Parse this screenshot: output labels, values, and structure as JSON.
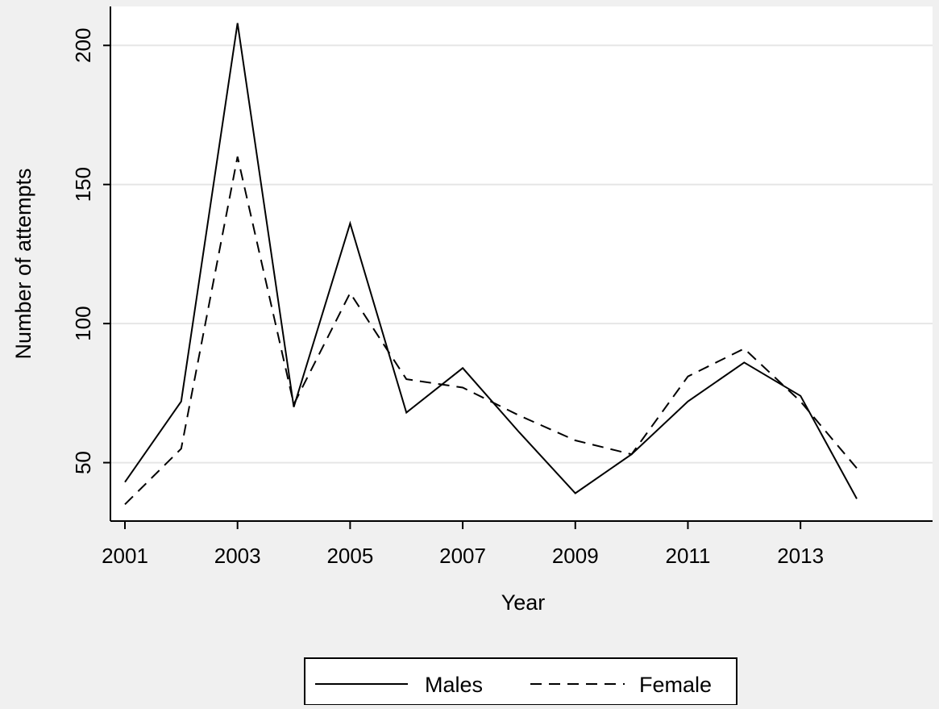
{
  "chart_data": {
    "type": "line",
    "title": "",
    "xlabel": "Year",
    "ylabel": "Number of attempts",
    "xlim": [
      2001,
      2014
    ],
    "ylim": [
      29,
      214
    ],
    "x_ticks": [
      2001,
      2003,
      2005,
      2007,
      2009,
      2011,
      2013
    ],
    "y_ticks": [
      50,
      100,
      150,
      200
    ],
    "grid": "horizontal",
    "legend_position": "bottom",
    "x": [
      2001,
      2002,
      2003,
      2004,
      2005,
      2006,
      2007,
      2008,
      2009,
      2010,
      2011,
      2012,
      2013,
      2014
    ],
    "series": [
      {
        "name": "Males",
        "style": "solid",
        "values": [
          43,
          72,
          208,
          70,
          136,
          68,
          84,
          61,
          39,
          53,
          72,
          86,
          74,
          37
        ]
      },
      {
        "name": "Female",
        "style": "dashed",
        "values": [
          35,
          55,
          160,
          71,
          111,
          80,
          77,
          67,
          58,
          53,
          81,
          91,
          72,
          48
        ]
      }
    ],
    "colors": {
      "background": "#f0f0f0",
      "plot_background": "#ffffff",
      "grid": "#e6e6e6",
      "line": "#000000"
    }
  }
}
